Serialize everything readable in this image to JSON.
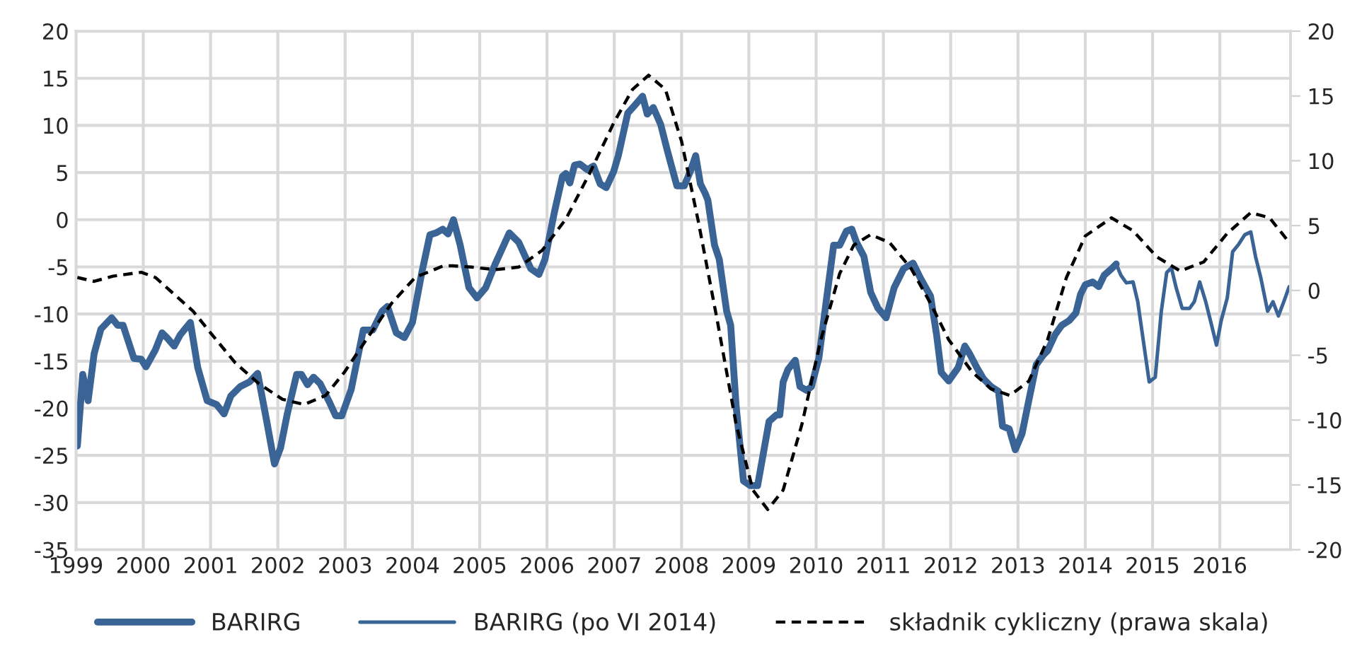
{
  "chart_data": {
    "type": "line",
    "xlim": [
      1999,
      2017.05
    ],
    "xticks": [
      1999,
      2000,
      2001,
      2002,
      2003,
      2004,
      2005,
      2006,
      2007,
      2008,
      2009,
      2010,
      2011,
      2012,
      2013,
      2014,
      2015,
      2016
    ],
    "ylim": [
      -35,
      20
    ],
    "yticks": [
      -35,
      -30,
      -25,
      -20,
      -15,
      -10,
      -5,
      0,
      5,
      10,
      15,
      20
    ],
    "y2lim": [
      -20,
      20
    ],
    "y2ticks": [
      -20,
      -15,
      -10,
      -5,
      0,
      5,
      10,
      15,
      20
    ],
    "grid": true,
    "legend": "bottom",
    "series": [
      {
        "name": "BARIRG",
        "color": "#3a6496",
        "line_style": "solid",
        "x": [
          1999.02,
          1999.1,
          1999.18,
          1999.27,
          1999.37,
          1999.53,
          1999.62,
          1999.7,
          1999.86,
          1999.97,
          2000.04,
          2000.18,
          2000.28,
          2000.35,
          2000.46,
          2000.55,
          2000.7,
          2000.81,
          2000.95,
          2001.09,
          2001.2,
          2001.3,
          2001.44,
          2001.58,
          2001.7,
          2001.83,
          2001.95,
          2002.04,
          2002.14,
          2002.28,
          2002.35,
          2002.44,
          2002.53,
          2002.63,
          2002.77,
          2002.86,
          2002.95,
          2003.09,
          2003.27,
          2003.41,
          2003.55,
          2003.63,
          2003.76,
          2003.88,
          2004.0,
          2004.14,
          2004.26,
          2004.35,
          2004.45,
          2004.53,
          2004.61,
          2004.71,
          2004.84,
          2004.96,
          2005.09,
          2005.23,
          2005.44,
          2005.58,
          2005.76,
          2005.88,
          2005.97,
          2006.11,
          2006.23,
          2006.28,
          2006.34,
          2006.41,
          2006.49,
          2006.6,
          2006.69,
          2006.79,
          2006.88,
          2006.99,
          2007.06,
          2007.2,
          2007.3,
          2007.42,
          2007.49,
          2007.58,
          2007.69,
          2007.79,
          2007.93,
          2008.04,
          2008.14,
          2008.21,
          2008.28,
          2008.35,
          2008.39,
          2008.49,
          2008.56,
          2008.67,
          2008.73,
          2008.81,
          2008.92,
          2009.02,
          2009.13,
          2009.23,
          2009.3,
          2009.41,
          2009.46,
          2009.51,
          2009.58,
          2009.69,
          2009.76,
          2009.86,
          2009.93,
          2010.04,
          2010.14,
          2010.26,
          2010.35,
          2010.45,
          2010.53,
          2010.6,
          2010.71,
          2010.81,
          2010.92,
          2011.04,
          2011.16,
          2011.3,
          2011.44,
          2011.55,
          2011.7,
          2011.79,
          2011.86,
          2011.97,
          2012.11,
          2012.21,
          2012.28,
          2012.39,
          2012.49,
          2012.6,
          2012.71,
          2012.77,
          2012.87,
          2012.96,
          2013.06,
          2013.16,
          2013.27,
          2013.37,
          2013.44,
          2013.55,
          2013.65,
          2013.76,
          2013.86,
          2013.93,
          2014.0,
          2014.11,
          2014.2,
          2014.28,
          2014.39,
          2014.46
        ],
        "values": [
          -24,
          -16.4,
          -19.2,
          -14.2,
          -11.6,
          -10.4,
          -11.2,
          -11.2,
          -14.7,
          -14.8,
          -15.6,
          -13.8,
          -12,
          -12.5,
          -13.4,
          -12.2,
          -10.9,
          -15.7,
          -19.2,
          -19.6,
          -20.6,
          -18.7,
          -17.7,
          -17.2,
          -16.3,
          -21.2,
          -25.9,
          -24.2,
          -20.6,
          -16.4,
          -16.4,
          -17.5,
          -16.7,
          -17.4,
          -19.4,
          -20.8,
          -20.8,
          -18,
          -11.7,
          -11.7,
          -9.7,
          -9.2,
          -12,
          -12.5,
          -10.9,
          -5.6,
          -1.6,
          -1.4,
          -1,
          -1.5,
          0,
          -2.7,
          -7.2,
          -8.3,
          -7.2,
          -4.7,
          -1.4,
          -2.4,
          -5.2,
          -5.8,
          -4.2,
          0.8,
          4.6,
          4.9,
          3.9,
          5.8,
          5.9,
          5.3,
          5.7,
          3.8,
          3.4,
          5.1,
          6.8,
          11.3,
          12.1,
          13.1,
          11.2,
          11.9,
          10.1,
          7.3,
          3.6,
          3.6,
          5.3,
          6.8,
          3.8,
          2.8,
          2.1,
          -2.7,
          -4.2,
          -9.7,
          -11.2,
          -19.7,
          -27.7,
          -28.2,
          -28.2,
          -24.2,
          -21.4,
          -20.7,
          -20.7,
          -17.2,
          -15.9,
          -14.9,
          -17.7,
          -18.1,
          -17.7,
          -14.7,
          -9.2,
          -2.7,
          -2.7,
          -1.2,
          -1,
          -2.4,
          -3.9,
          -7.7,
          -9.4,
          -10.4,
          -7.2,
          -5.2,
          -4.6,
          -6.2,
          -8.1,
          -12.2,
          -16.2,
          -17.1,
          -15.7,
          -13.4,
          -14.2,
          -15.7,
          -16.9,
          -17.7,
          -18.2,
          -21.9,
          -22.2,
          -24.4,
          -22.7,
          -19.2,
          -15.4,
          -14.4,
          -13.9,
          -12.2,
          -11.2,
          -10.7,
          -9.9,
          -7.9,
          -6.9,
          -6.6,
          -7.1,
          -5.9,
          -5.2,
          -4.7
        ]
      },
      {
        "name": "BARIRG (po VI 2014)",
        "color": "#3a6496",
        "line_style": "solid",
        "x": [
          2014.46,
          2014.53,
          2014.61,
          2014.71,
          2014.78,
          2014.95,
          2015.04,
          2015.13,
          2015.21,
          2015.28,
          2015.35,
          2015.44,
          2015.55,
          2015.62,
          2015.7,
          2015.79,
          2015.86,
          2015.95,
          2016.02,
          2016.11,
          2016.19,
          2016.28,
          2016.37,
          2016.46,
          2016.53,
          2016.61,
          2016.71,
          2016.79,
          2016.87,
          2016.95,
          2017.03
        ],
        "values": [
          -4.7,
          -5.9,
          -6.7,
          -6.6,
          -8.7,
          -17.2,
          -16.7,
          -9.7,
          -5.6,
          -5.1,
          -7.2,
          -9.4,
          -9.4,
          -8.7,
          -6.6,
          -8.7,
          -10.7,
          -13.3,
          -10.7,
          -8.3,
          -3.4,
          -2.6,
          -1.6,
          -1.3,
          -3.9,
          -6.2,
          -9.7,
          -8.7,
          -10.2,
          -8.7,
          -7.1
        ]
      },
      {
        "name": "składnik cykliczny (prawa skala)",
        "color": "#000000",
        "line_style": "dashed",
        "axis": "y2",
        "x": [
          1999.02,
          1999.27,
          1999.55,
          1999.97,
          2000.18,
          2000.46,
          2000.74,
          2001.02,
          2001.37,
          2001.72,
          2002.07,
          2002.39,
          2002.71,
          2002.99,
          2003.34,
          2003.69,
          2004.04,
          2004.46,
          2004.6,
          2004.88,
          2005.23,
          2005.58,
          2005.93,
          2006.28,
          2006.64,
          2006.99,
          2007.27,
          2007.51,
          2007.76,
          2008.0,
          2008.25,
          2008.53,
          2008.81,
          2009.06,
          2009.28,
          2009.51,
          2009.79,
          2010.07,
          2010.35,
          2010.56,
          2010.81,
          2011.09,
          2011.41,
          2011.69,
          2011.97,
          2012.32,
          2012.6,
          2012.88,
          2013.16,
          2013.44,
          2013.72,
          2014.0,
          2014.39,
          2014.71,
          2015.06,
          2015.41,
          2015.76,
          2016.11,
          2016.46,
          2016.74,
          2017.03
        ],
        "values": [
          1.0,
          0.7,
          1.1,
          1.4,
          1.0,
          -0.3,
          -1.6,
          -3.4,
          -5.6,
          -7.2,
          -8.4,
          -8.8,
          -8.1,
          -6.3,
          -3.6,
          -1.0,
          1.0,
          1.9,
          1.9,
          1.8,
          1.6,
          1.8,
          3.1,
          5.5,
          9.1,
          12.9,
          15.5,
          16.6,
          15.5,
          11.5,
          5.3,
          -2.3,
          -10.3,
          -15.4,
          -16.9,
          -15.4,
          -10.3,
          -3.8,
          1.3,
          3.5,
          4.3,
          3.7,
          1.7,
          -0.9,
          -3.8,
          -6.3,
          -7.6,
          -8.1,
          -7.0,
          -3.8,
          1.0,
          4.2,
          5.6,
          4.6,
          2.6,
          1.5,
          2.2,
          4.4,
          6.0,
          5.6,
          3.7
        ]
      }
    ]
  }
}
